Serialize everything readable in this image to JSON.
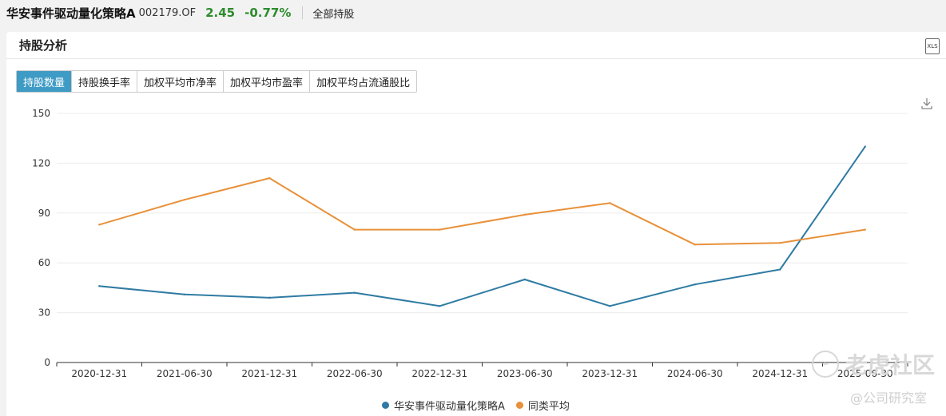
{
  "header": {
    "fund_name": "华安事件驱动量化策略A",
    "fund_code": "002179.OF",
    "price": "2.45",
    "change": "-0.77%",
    "holdings_link": "全部持股"
  },
  "panel": {
    "title": "持股分析",
    "xls_label": "XLS"
  },
  "tabs": [
    {
      "label": "持股数量",
      "active": true
    },
    {
      "label": "持股换手率",
      "active": false
    },
    {
      "label": "加权平均市净率",
      "active": false
    },
    {
      "label": "加权平均市盈率",
      "active": false
    },
    {
      "label": "加权平均占流通股比",
      "active": false
    }
  ],
  "watermark": {
    "main": "老虎社区",
    "sub": "@公司研究室"
  },
  "colors": {
    "series_1": "#2f7ba3",
    "series_2": "#e8913a",
    "active_tab": "#3e9bc5",
    "change": "#2e8b2e"
  },
  "chart_data": {
    "type": "line",
    "x": [
      "2020-12-31",
      "2021-06-30",
      "2021-12-31",
      "2022-06-30",
      "2022-12-31",
      "2023-06-30",
      "2023-12-31",
      "2024-06-30",
      "2024-12-31",
      "2025-06-30"
    ],
    "series": [
      {
        "name": "华安事件驱动量化策略A",
        "values": [
          46,
          41,
          39,
          42,
          34,
          50,
          34,
          47,
          56,
          130
        ]
      },
      {
        "name": "同类平均",
        "values": [
          83,
          98,
          111,
          80,
          80,
          89,
          96,
          71,
          72,
          80
        ]
      }
    ],
    "yticks": [
      "0",
      "30",
      "60",
      "90",
      "120",
      "150"
    ],
    "ylim": [
      0,
      150
    ],
    "grid": true,
    "legend": "bottom-center"
  }
}
